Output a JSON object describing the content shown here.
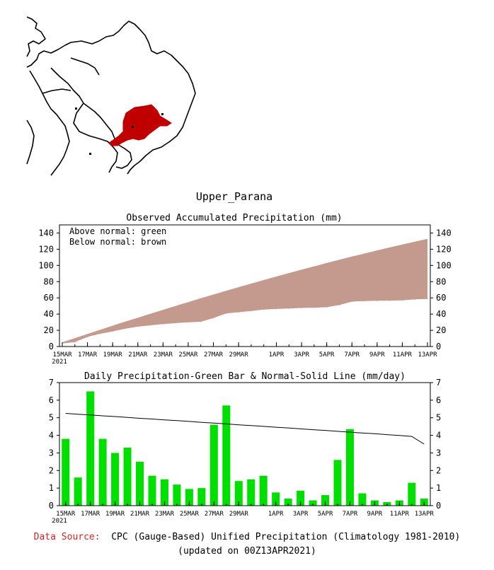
{
  "region_name": "Upper_Parana",
  "colors": {
    "region_fill": "#c00000",
    "accum_fill": "#c49a8e",
    "bar_fill": "#00e000",
    "source_label": "#e02020"
  },
  "dates": [
    "15MAR",
    "16MAR",
    "17MAR",
    "18MAR",
    "19MAR",
    "20MAR",
    "21MAR",
    "22MAR",
    "23MAR",
    "24MAR",
    "25MAR",
    "26MAR",
    "27MAR",
    "28MAR",
    "29MAR",
    "30MAR",
    "31MAR",
    "1APR",
    "2APR",
    "3APR",
    "4APR",
    "5APR",
    "6APR",
    "7APR",
    "8APR",
    "9APR",
    "10APR",
    "11APR",
    "12APR",
    "13APR"
  ],
  "x_tick_labels": [
    {
      "idx": 0,
      "label": "15MAR"
    },
    {
      "idx": 2,
      "label": "17MAR"
    },
    {
      "idx": 4,
      "label": "19MAR"
    },
    {
      "idx": 6,
      "label": "21MAR"
    },
    {
      "idx": 8,
      "label": "23MAR"
    },
    {
      "idx": 10,
      "label": "25MAR"
    },
    {
      "idx": 12,
      "label": "27MAR"
    },
    {
      "idx": 14,
      "label": "29MAR"
    },
    {
      "idx": 17,
      "label": "1APR"
    },
    {
      "idx": 19,
      "label": "3APR"
    },
    {
      "idx": 21,
      "label": "5APR"
    },
    {
      "idx": 23,
      "label": "7APR"
    },
    {
      "idx": 25,
      "label": "9APR"
    },
    {
      "idx": 27,
      "label": "11APR"
    },
    {
      "idx": 29,
      "label": "13APR"
    }
  ],
  "year_label": "2021",
  "chart_data": [
    {
      "type": "area",
      "title": "Observed Accumulated Precipitation (mm)",
      "legend_lines": [
        "Above normal: green",
        "Below normal: brown"
      ],
      "xlabel": "",
      "ylabel": "",
      "ylim": [
        0,
        150
      ],
      "yticks": [
        0,
        20,
        40,
        60,
        80,
        100,
        120,
        140
      ],
      "series": [
        {
          "name": "Observed accumulated",
          "values": [
            3.8,
            5.4,
            11.9,
            15.7,
            18.7,
            22.0,
            24.5,
            26.2,
            27.7,
            28.9,
            29.9,
            30.5,
            35.1,
            40.8,
            42.3,
            43.8,
            45.5,
            46.3,
            46.8,
            47.6,
            47.9,
            48.5,
            51.1,
            55.4,
            56.1,
            56.4,
            56.6,
            56.9,
            58.2,
            58.6
          ]
        },
        {
          "name": "Normal accumulated",
          "values": [
            5.2,
            10.4,
            15.5,
            20.6,
            25.7,
            30.7,
            35.6,
            40.5,
            45.3,
            50.1,
            54.8,
            59.5,
            64.1,
            68.7,
            73.2,
            77.6,
            82.0,
            86.3,
            90.6,
            94.8,
            98.9,
            103.0,
            107.0,
            110.9,
            114.7,
            118.5,
            122.2,
            125.8,
            129.3,
            132.8
          ]
        }
      ]
    },
    {
      "type": "bar",
      "title": "Daily Precipitation-Green Bar & Normal-Solid Line (mm/day)",
      "xlabel": "",
      "ylabel": "",
      "ylim": [
        0,
        7
      ],
      "yticks": [
        0,
        1,
        2,
        3,
        4,
        5,
        6,
        7
      ],
      "series": [
        {
          "name": "Daily precipitation",
          "values": [
            3.8,
            1.6,
            6.5,
            3.8,
            3.0,
            3.3,
            2.5,
            1.7,
            1.5,
            1.2,
            0.95,
            1.0,
            4.6,
            5.7,
            1.4,
            1.5,
            1.7,
            0.75,
            0.4,
            0.85,
            0.3,
            0.6,
            2.6,
            4.35,
            0.7,
            0.3,
            0.2,
            0.3,
            1.3,
            0.4
          ]
        },
        {
          "name": "Normal",
          "values": [
            5.25,
            5.2,
            5.16,
            5.11,
            5.07,
            5.02,
            4.97,
            4.93,
            4.88,
            4.84,
            4.79,
            4.74,
            4.7,
            4.65,
            4.6,
            4.56,
            4.51,
            4.46,
            4.42,
            4.37,
            4.32,
            4.28,
            4.23,
            4.18,
            4.13,
            4.09,
            4.04,
            3.99,
            3.94,
            3.5
          ]
        }
      ]
    }
  ],
  "footer": {
    "source_label": "Data Source:",
    "source_text": "CPC (Gauge-Based) Unified Precipitation (Climatology 1981-2010)",
    "updated": "(updated on 00Z13APR2021)"
  }
}
